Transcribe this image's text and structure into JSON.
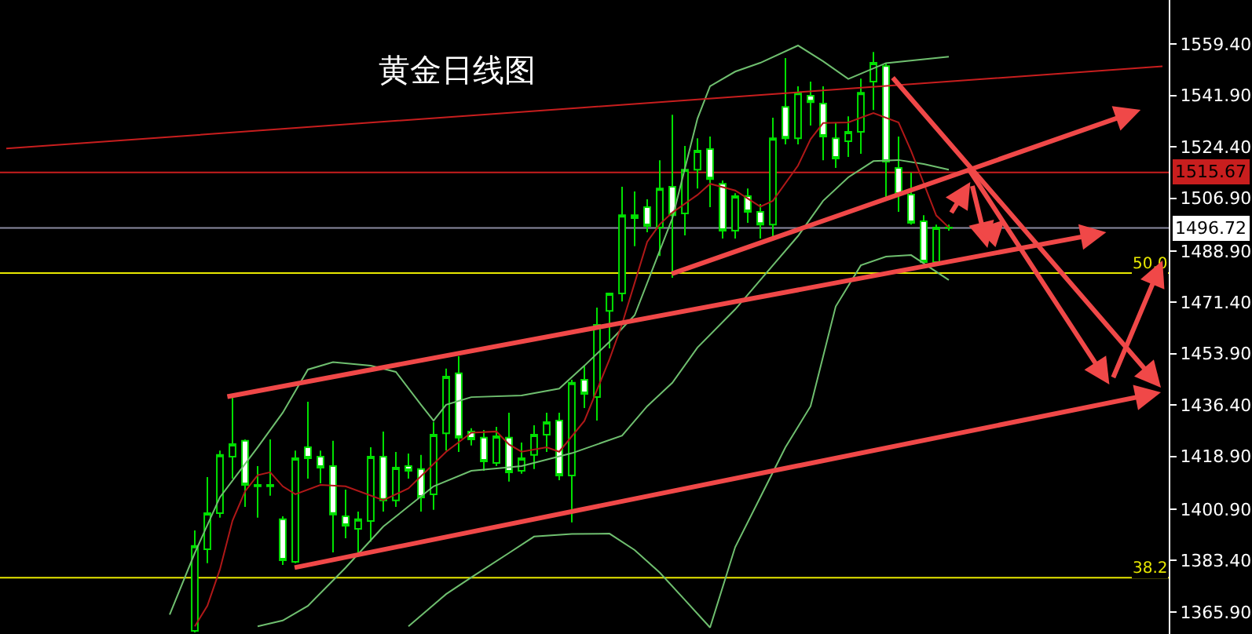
{
  "chart_data": {
    "type": "candlestick",
    "title": "黄金日线图",
    "color": "#00e000",
    "categories": [
      null,
      null,
      null,
      null,
      null,
      null,
      null,
      null,
      null,
      null,
      null,
      null,
      null,
      null,
      null,
      null,
      null,
      null,
      null,
      null,
      null,
      null,
      null,
      null,
      null,
      null,
      null,
      null,
      null,
      null,
      null,
      null,
      null,
      null,
      null,
      null,
      null,
      null,
      null,
      null,
      null,
      null,
      null,
      null,
      null,
      null,
      null,
      null,
      null,
      null,
      null,
      null,
      null,
      null,
      null,
      null,
      null,
      null,
      null,
      null,
      null,
      null,
      null,
      null,
      null,
      null,
      null,
      null,
      null,
      null,
      null,
      null,
      null,
      null,
      null,
      null,
      null,
      null,
      null,
      null,
      null,
      null,
      null,
      null,
      null,
      null,
      null,
      null,
      null,
      null,
      null,
      null,
      null
    ],
    "ohlc": [
      null,
      null,
      null,
      null,
      null,
      null,
      null,
      null,
      null,
      null,
      null,
      null,
      null,
      null,
      null,
      [
        1359.5,
        1393.7,
        1358.9,
        1388.4
      ],
      [
        1387.3,
        1411.9,
        1382.5,
        1399.6
      ],
      [
        1399.6,
        1420.9,
        1398.0,
        1419.4
      ],
      [
        1418.8,
        1439.1,
        1411.3,
        1423.1
      ],
      [
        1424.2,
        1424.7,
        1401.7,
        1409.2
      ],
      [
        1409.2,
        1415.6,
        1398.0,
        1408.7
      ],
      [
        1409.2,
        1424.7,
        1405.5,
        1408.7
      ],
      [
        1397.5,
        1398.5,
        1381.9,
        1383.5
      ],
      [
        1383.0,
        1420.9,
        1382.5,
        1418.3
      ],
      [
        1422.0,
        1437.5,
        1411.3,
        1418.3
      ],
      [
        1418.8,
        1420.9,
        1409.7,
        1415.1
      ],
      [
        1415.6,
        1424.2,
        1386.2,
        1399.1
      ],
      [
        1398.5,
        1407.6,
        1391.0,
        1395.3
      ],
      [
        1394.2,
        1400.1,
        1385.7,
        1397.5
      ],
      [
        1396.9,
        1422.0,
        1389.9,
        1418.8
      ],
      [
        1418.8,
        1427.4,
        1400.1,
        1403.9
      ],
      [
        1403.9,
        1420.4,
        1401.7,
        1415.1
      ],
      [
        1415.6,
        1419.9,
        1411.3,
        1414.0
      ],
      [
        1414.6,
        1419.4,
        1400.1,
        1404.9
      ],
      [
        1406.0,
        1430.6,
        1400.7,
        1426.3
      ],
      [
        1426.8,
        1448.8,
        1420.9,
        1446.1
      ],
      [
        1447.2,
        1453.0,
        1420.4,
        1425.3
      ],
      [
        1427.4,
        1428.5,
        1422.6,
        1424.7
      ],
      [
        1425.3,
        1427.9,
        1414.0,
        1417.2
      ],
      [
        1416.7,
        1429.0,
        1415.6,
        1425.8
      ],
      [
        1425.3,
        1433.8,
        1410.3,
        1413.5
      ],
      [
        1414.0,
        1423.6,
        1413.0,
        1418.3
      ],
      [
        1419.4,
        1429.5,
        1414.6,
        1426.3
      ],
      [
        1426.3,
        1433.8,
        1420.4,
        1430.6
      ],
      [
        1431.1,
        1433.8,
        1410.8,
        1412.4
      ],
      [
        1412.4,
        1445.0,
        1396.4,
        1444.0
      ],
      [
        1445.0,
        1449.8,
        1435.4,
        1440.2
      ],
      [
        1439.1,
        1469.6,
        1431.1,
        1463.7
      ],
      [
        1468.5,
        1474.4,
        1455.7,
        1474.4
      ],
      [
        1474.4,
        1510.8,
        1471.7,
        1501.1
      ],
      [
        1500.1,
        1509.2,
        1490.5,
        1501.1
      ],
      [
        1503.8,
        1506.5,
        1495.3,
        1497.4
      ],
      [
        1496.9,
        1519.8,
        1487.2,
        1510.2
      ],
      [
        1510.8,
        1535.3,
        1479.8,
        1501.1
      ],
      [
        1501.7,
        1524.7,
        1494.2,
        1516.6
      ],
      [
        1516.6,
        1527.3,
        1510.2,
        1523.1
      ],
      [
        1523.6,
        1527.9,
        1503.8,
        1513.4
      ],
      [
        1511.8,
        1512.9,
        1493.1,
        1495.8
      ],
      [
        1495.8,
        1508.6,
        1493.1,
        1507.6
      ],
      [
        1507.6,
        1510.2,
        1498.5,
        1502.2
      ],
      [
        1502.2,
        1504.9,
        1493.1,
        1497.9
      ],
      [
        1497.9,
        1534.3,
        1493.1,
        1527.3
      ],
      [
        1538.0,
        1554.6,
        1525.2,
        1527.3
      ],
      [
        1527.3,
        1545.0,
        1525.2,
        1542.8
      ],
      [
        1541.8,
        1546.6,
        1531.6,
        1539.6
      ],
      [
        1539.1,
        1545.0,
        1519.8,
        1527.9
      ],
      [
        1527.3,
        1532.7,
        1517.2,
        1520.4
      ],
      [
        1526.3,
        1534.8,
        1520.9,
        1529.5
      ],
      [
        1529.5,
        1547.6,
        1522.0,
        1542.8
      ],
      [
        1546.6,
        1556.7,
        1536.9,
        1553.0
      ],
      [
        1551.9,
        1553.0,
        1506.5,
        1519.3
      ],
      [
        1517.2,
        1527.9,
        1502.2,
        1508.1
      ],
      [
        1508.1,
        1515.6,
        1497.9,
        1498.5
      ],
      [
        1499.0,
        1501.1,
        1484.6,
        1485.1
      ],
      [
        1485.1,
        1497.9,
        1484.6,
        1496.9
      ],
      [
        1496.9,
        1497.9,
        1495.8,
        1496.72
      ],
      null,
      null,
      null,
      null,
      null,
      null,
      null,
      null,
      null,
      null,
      null,
      null,
      null,
      null,
      null,
      null,
      null
    ],
    "series": [
      {
        "type": "line",
        "color": "#6fbf6f",
        "values": [
          null,
          null,
          null,
          null,
          null,
          null,
          null,
          null,
          null,
          null,
          null,
          null,
          null,
          1365.0,
          null,
          1386,
          null,
          1405,
          null,
          null,
          1422,
          null,
          1433.8,
          null,
          1448.5,
          null,
          1451.0,
          null,
          null,
          1449.8,
          null,
          1447.7,
          null,
          1436.5,
          1431.1,
          1436.5,
          null,
          1439.1,
          null,
          null,
          null,
          1439.7,
          null,
          null,
          1442,
          null,
          1449.8,
          null,
          1458,
          null,
          1467,
          null,
          1489,
          1500,
          null,
          1534,
          1545,
          null,
          1550,
          null,
          1553,
          null,
          null,
          1558.9,
          null,
          1553.5,
          null,
          1547.5,
          null,
          null,
          1552.9,
          null,
          null,
          null,
          null,
          1555.1,
          null,
          null,
          null,
          null,
          null,
          null,
          null,
          null,
          null,
          null,
          null,
          null,
          null,
          null,
          null,
          null,
          null
        ]
      },
      {
        "type": "line",
        "color": "#6fbf6f",
        "values": [
          null,
          null,
          null,
          null,
          null,
          null,
          null,
          null,
          null,
          null,
          null,
          null,
          null,
          null,
          null,
          null,
          null,
          null,
          null,
          null,
          1361,
          null,
          1363,
          null,
          1368,
          null,
          null,
          1381,
          null,
          null,
          1395,
          null,
          null,
          null,
          1408.7,
          null,
          null,
          1414,
          null,
          null,
          null,
          1415.6,
          null,
          null,
          null,
          1420,
          null,
          null,
          null,
          1426,
          null,
          1436,
          null,
          1444,
          null,
          1456,
          null,
          null,
          1469,
          null,
          null,
          1484,
          null,
          1494,
          null,
          1506,
          null,
          1514,
          null,
          1519.5,
          null,
          1519.9,
          null,
          1518.5,
          null,
          1516.6,
          null,
          null,
          null,
          null,
          null,
          null,
          null,
          null,
          null,
          null,
          null,
          null,
          null,
          null,
          null,
          null,
          null
        ]
      },
      {
        "type": "line",
        "color": "#6fbf6f",
        "values": [
          null,
          null,
          null,
          null,
          null,
          null,
          null,
          null,
          null,
          null,
          null,
          null,
          null,
          null,
          null,
          null,
          null,
          null,
          null,
          null,
          null,
          null,
          null,
          null,
          null,
          null,
          null,
          null,
          null,
          null,
          null,
          null,
          1361,
          null,
          null,
          1372,
          null,
          1377.7,
          null,
          null,
          1386,
          null,
          1391.6,
          null,
          null,
          1392.5,
          null,
          null,
          1392.6,
          null,
          1387,
          null,
          1379.3,
          null,
          1370,
          null,
          1360.6,
          null,
          1388,
          null,
          1405,
          null,
          1422,
          null,
          1436,
          null,
          1470,
          null,
          1484,
          null,
          1487,
          null,
          1487.5,
          null,
          null,
          1479,
          null,
          null,
          null,
          null,
          null,
          null,
          null,
          null,
          null,
          null,
          null,
          null,
          null,
          null,
          null,
          null,
          null
        ]
      },
      {
        "type": "line",
        "color": "#b01818",
        "values": [
          null,
          null,
          null,
          null,
          null,
          null,
          null,
          null,
          null,
          null,
          null,
          null,
          null,
          null,
          null,
          1361,
          1368,
          1380.4,
          1397,
          1407,
          1412.5,
          1413.5,
          1408.7,
          1406,
          null,
          1409.2,
          null,
          1408.7,
          null,
          null,
          1404,
          null,
          1408,
          null,
          null,
          1420.5,
          null,
          1427,
          null,
          1427.4,
          1423,
          1420.5,
          null,
          1422,
          1420.5,
          null,
          1431,
          null,
          1452,
          1464,
          1478,
          1492,
          1498,
          1502,
          null,
          1508,
          1511.8,
          null,
          1509.5,
          null,
          1504,
          1506,
          null,
          1518,
          1527,
          1532.5,
          null,
          1532.7,
          null,
          1535.9,
          null,
          1532.7,
          1523,
          1512,
          1501,
          1496.9,
          null,
          null,
          null,
          null,
          null,
          null,
          null,
          null,
          null,
          null,
          null,
          null,
          null,
          null,
          null,
          null,
          null
        ]
      },
      {
        "type": "line",
        "color": "#c81e1e",
        "values": [
          1523.8,
          null,
          null,
          null,
          null,
          null,
          null,
          null,
          null,
          null,
          null,
          null,
          null,
          null,
          null,
          null,
          null,
          null,
          null,
          null,
          null,
          null,
          null,
          null,
          null,
          null,
          null,
          null,
          null,
          null,
          null,
          null,
          null,
          null,
          null,
          null,
          null,
          null,
          null,
          null,
          null,
          null,
          null,
          null,
          null,
          null,
          1537.8,
          null,
          null,
          null,
          null,
          null,
          null,
          null,
          null,
          null,
          null,
          null,
          null,
          null,
          null,
          null,
          null,
          null,
          null,
          null,
          null,
          null,
          null,
          null,
          null,
          null,
          null,
          null,
          null,
          null,
          null,
          null,
          null,
          null,
          null,
          null,
          null,
          null,
          null,
          null,
          null,
          null,
          null,
          null,
          null,
          null,
          1551.8
        ]
      }
    ],
    "annotations": [
      {
        "text": "50.0",
        "y": 1481.4
      },
      {
        "text": "38.2",
        "y": 1377.6
      }
    ],
    "ref_lines": [
      {
        "axis": "y",
        "value": 1515.67,
        "label": "1515.67",
        "color": "#c81e1e"
      },
      {
        "axis": "y",
        "value": 1496.72,
        "label": "1496.72",
        "color": "#8a8aa0"
      },
      {
        "axis": "y",
        "value": 1481.4,
        "color": "#e8e800"
      },
      {
        "axis": "y",
        "value": 1377.6,
        "color": "#e8e800"
      }
    ],
    "ylim": [
      1358.4,
      1574.4
    ],
    "yticks": [
      {
        "value": 1559.4,
        "label": "1559.40"
      },
      {
        "value": 1541.9,
        "label": "1541.90"
      },
      {
        "value": 1524.4,
        "label": "1524.40"
      },
      {
        "value": 1506.9,
        "label": "1506.90"
      },
      {
        "value": 1488.9,
        "label": "1488.90"
      },
      {
        "value": 1471.4,
        "label": "1471.40"
      },
      {
        "value": 1453.9,
        "label": "1453.90"
      },
      {
        "value": 1436.4,
        "label": "1436.40"
      },
      {
        "value": 1418.9,
        "label": "1418.90"
      },
      {
        "value": 1400.9,
        "label": "1400.90"
      },
      {
        "value": 1383.4,
        "label": "1383.40"
      },
      {
        "value": 1365.9,
        "label": "1365.90"
      }
    ],
    "tick_labels": "y",
    "grid": false
  }
}
